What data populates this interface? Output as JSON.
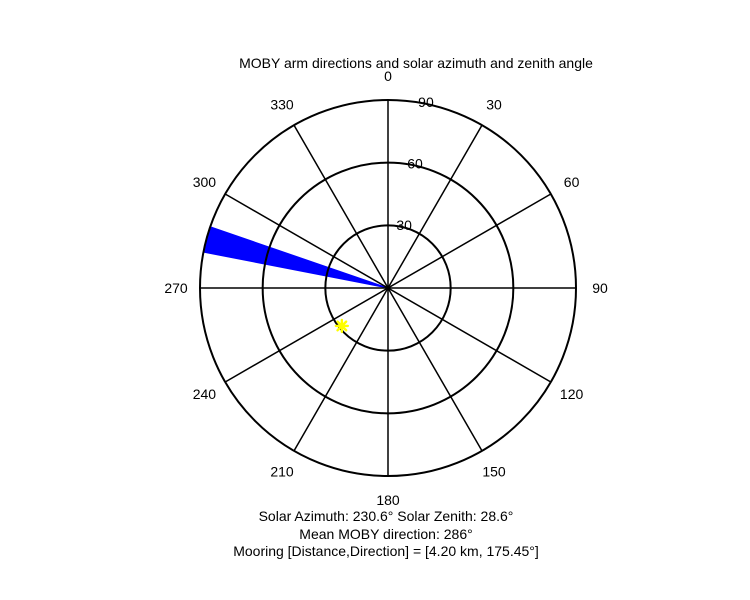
{
  "chart_data": {
    "type": "polar",
    "title": "MOBY arm directions and solar azimuth and zenith angle",
    "azimuth_tick_labels": [
      "0",
      "30",
      "60",
      "90",
      "120",
      "150",
      "180",
      "210",
      "240",
      "270",
      "300",
      "330"
    ],
    "radial_tick_labels": [
      "30",
      "60",
      "90"
    ],
    "radial_ticks": [
      30,
      60,
      90
    ],
    "radial_range": [
      0,
      90
    ],
    "azimuth_orientation": "clockwise, 0 at top",
    "series": [
      {
        "name": "MOBY arm directions",
        "type": "wedge",
        "color": "#0000ff",
        "azimuth_range": [
          281,
          289
        ],
        "radial_range": [
          0,
          90
        ]
      },
      {
        "name": "Sun",
        "type": "marker",
        "marker": "star",
        "color": "#ffff00",
        "azimuth": 230.6,
        "zenith": 28.6
      }
    ],
    "captions": [
      "Solar Azimuth: 230.6°   Solar Zenith: 28.6°",
      "Mean MOBY direction: 286°",
      "Mooring [Distance,Direction] = [4.20 km, 175.45°]"
    ]
  }
}
